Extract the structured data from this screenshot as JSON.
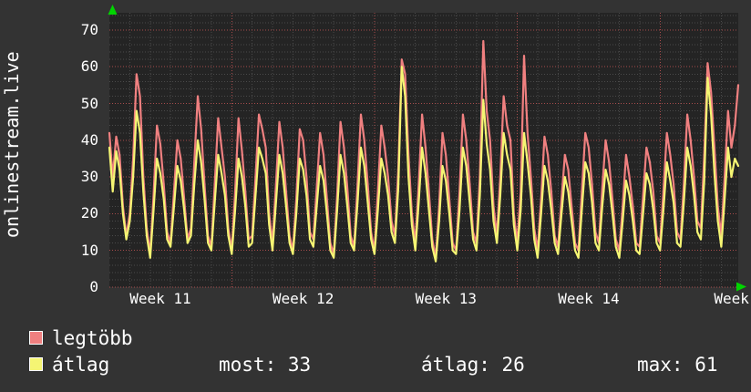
{
  "title": {
    "vertical_label": "onlinestream.live"
  },
  "colors": {
    "background": "#333333",
    "plot_background": "#242424",
    "grid_minor": "#4a4a4a",
    "grid_major": "#a84c4c",
    "axis_arrow": "#00d400",
    "text": "#ffffff",
    "series_max": "#f08080",
    "series_avg": "#f5f573"
  },
  "legend": {
    "series": [
      {
        "label": "legtöbb",
        "color": "#f08080"
      },
      {
        "label": "átlag",
        "color": "#f5f573"
      }
    ],
    "stats": [
      {
        "label": "most:",
        "value": "33"
      },
      {
        "label": "átlag:",
        "value": "26"
      },
      {
        "label": "max:",
        "value": "61"
      }
    ]
  },
  "chart_data": {
    "type": "line",
    "ylabel": "onlinestream.live",
    "ylim": [
      0,
      74.7
    ],
    "yticks": [
      0,
      10,
      20,
      30,
      40,
      50,
      60,
      70
    ],
    "y_minor_step": 2,
    "xticklabels": [
      "Week 11",
      "Week 12",
      "Week 13",
      "Week 14",
      "Week"
    ],
    "days_shown": 31,
    "grid": "dotted, red major lines every 10 units and every week, gray minor lines every 2 units and every day",
    "legend_position": "bottom-left",
    "series": [
      {
        "name": "legtöbb",
        "color": "#f08080",
        "values": [
          42,
          30,
          41,
          36,
          22,
          14,
          20,
          35,
          58,
          52,
          30,
          16,
          9,
          25,
          44,
          39,
          28,
          15,
          12,
          26,
          40,
          35,
          24,
          13,
          16,
          34,
          52,
          43,
          28,
          14,
          11,
          28,
          46,
          38,
          30,
          16,
          10,
          26,
          46,
          37,
          26,
          13,
          14,
          30,
          47,
          43,
          38,
          20,
          12,
          28,
          45,
          38,
          26,
          14,
          10,
          24,
          43,
          40,
          30,
          15,
          13,
          27,
          42,
          36,
          24,
          12,
          9,
          25,
          45,
          38,
          27,
          14,
          11,
          28,
          47,
          40,
          28,
          15,
          10,
          26,
          44,
          38,
          30,
          18,
          14,
          32,
          62,
          58,
          36,
          20,
          12,
          28,
          47,
          38,
          26,
          13,
          8,
          22,
          42,
          36,
          24,
          12,
          10,
          26,
          47,
          40,
          28,
          15,
          12,
          30,
          67,
          48,
          40,
          22,
          14,
          30,
          52,
          44,
          40,
          20,
          12,
          26,
          63,
          42,
          30,
          16,
          10,
          24,
          41,
          36,
          26,
          14,
          11,
          24,
          36,
          32,
          22,
          12,
          10,
          26,
          42,
          38,
          28,
          15,
          12,
          27,
          40,
          34,
          24,
          13,
          10,
          22,
          36,
          30,
          22,
          12,
          11,
          25,
          38,
          34,
          26,
          14,
          12,
          26,
          42,
          36,
          28,
          15,
          13,
          28,
          47,
          40,
          30,
          18,
          16,
          36,
          61,
          53,
          38,
          22,
          14,
          30,
          48,
          38,
          44,
          55
        ]
      },
      {
        "name": "átlag",
        "color": "#f5f573",
        "values": [
          38,
          26,
          37,
          32,
          20,
          13,
          18,
          30,
          48,
          42,
          26,
          14,
          8,
          21,
          35,
          31,
          24,
          13,
          11,
          22,
          33,
          29,
          21,
          12,
          14,
          28,
          40,
          34,
          24,
          12,
          10,
          23,
          36,
          31,
          25,
          14,
          9,
          21,
          35,
          30,
          22,
          11,
          12,
          25,
          38,
          35,
          31,
          17,
          10,
          23,
          36,
          31,
          22,
          12,
          9,
          20,
          35,
          32,
          25,
          13,
          11,
          22,
          33,
          29,
          20,
          10,
          8,
          21,
          36,
          31,
          22,
          12,
          10,
          23,
          38,
          33,
          23,
          13,
          9,
          21,
          35,
          31,
          25,
          15,
          12,
          27,
          60,
          52,
          30,
          17,
          10,
          23,
          38,
          31,
          21,
          11,
          7,
          18,
          33,
          29,
          20,
          10,
          9,
          21,
          38,
          33,
          23,
          13,
          10,
          25,
          51,
          39,
          32,
          18,
          12,
          25,
          42,
          36,
          32,
          17,
          10,
          21,
          42,
          34,
          25,
          13,
          8,
          20,
          33,
          29,
          21,
          12,
          9,
          20,
          30,
          26,
          18,
          10,
          8,
          21,
          34,
          31,
          23,
          12,
          10,
          22,
          32,
          28,
          20,
          11,
          8,
          18,
          29,
          25,
          18,
          10,
          9,
          20,
          31,
          28,
          21,
          12,
          10,
          21,
          34,
          29,
          23,
          12,
          11,
          23,
          38,
          33,
          25,
          15,
          13,
          29,
          57,
          47,
          31,
          18,
          11,
          24,
          38,
          30,
          35,
          33
        ]
      }
    ]
  }
}
